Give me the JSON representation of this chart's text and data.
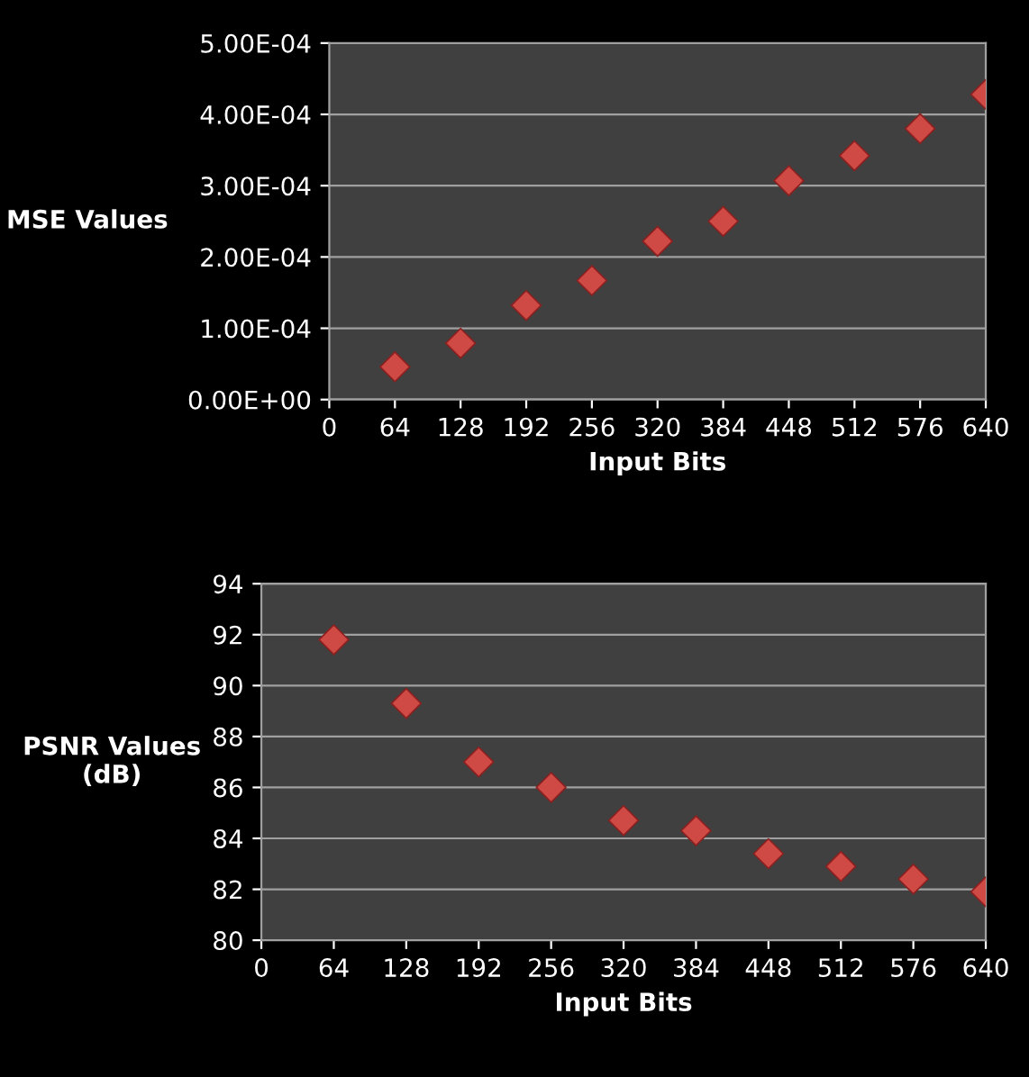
{
  "chart_data": [
    {
      "type": "scatter",
      "xlabel": "Input Bits",
      "ylabel": "MSE Values",
      "x": [
        64,
        128,
        192,
        256,
        320,
        384,
        448,
        512,
        576,
        640
      ],
      "marker": "diamond",
      "grid": "y",
      "xlim": [
        0,
        640
      ],
      "xticks": [
        0,
        64,
        128,
        192,
        256,
        320,
        384,
        448,
        512,
        576,
        640
      ],
      "ylim": [
        0,
        0.0005
      ],
      "yticks": [
        {
          "value": 0,
          "label": "0.00E+00"
        },
        {
          "value": 0.0001,
          "label": "1.00E-04"
        },
        {
          "value": 0.0002,
          "label": "2.00E-04"
        },
        {
          "value": 0.0003,
          "label": "3.00E-04"
        },
        {
          "value": 0.0004,
          "label": "4.00E-04"
        },
        {
          "value": 0.0005,
          "label": "5.00E-04"
        }
      ],
      "series": [
        {
          "color": "#d04a45",
          "values": [
            4.6e-05,
            7.9e-05,
            0.000132,
            0.000167,
            0.000222,
            0.00025,
            0.000307,
            0.000342,
            0.00038,
            0.000428
          ]
        }
      ]
    },
    {
      "type": "scatter",
      "xlabel": "Input Bits",
      "ylabel": "PSNR Values\n(dB)",
      "x": [
        64,
        128,
        192,
        256,
        320,
        384,
        448,
        512,
        576,
        640
      ],
      "marker": "diamond",
      "grid": "y",
      "xlim": [
        0,
        640
      ],
      "xticks": [
        0,
        64,
        128,
        192,
        256,
        320,
        384,
        448,
        512,
        576,
        640
      ],
      "ylim": [
        80,
        94
      ],
      "yticks": [
        80,
        82,
        84,
        86,
        88,
        90,
        92,
        94
      ],
      "series": [
        {
          "color": "#d04a45",
          "values": [
            91.8,
            89.3,
            87.0,
            86.0,
            84.7,
            84.3,
            83.4,
            82.9,
            82.4,
            81.9
          ]
        }
      ]
    }
  ]
}
